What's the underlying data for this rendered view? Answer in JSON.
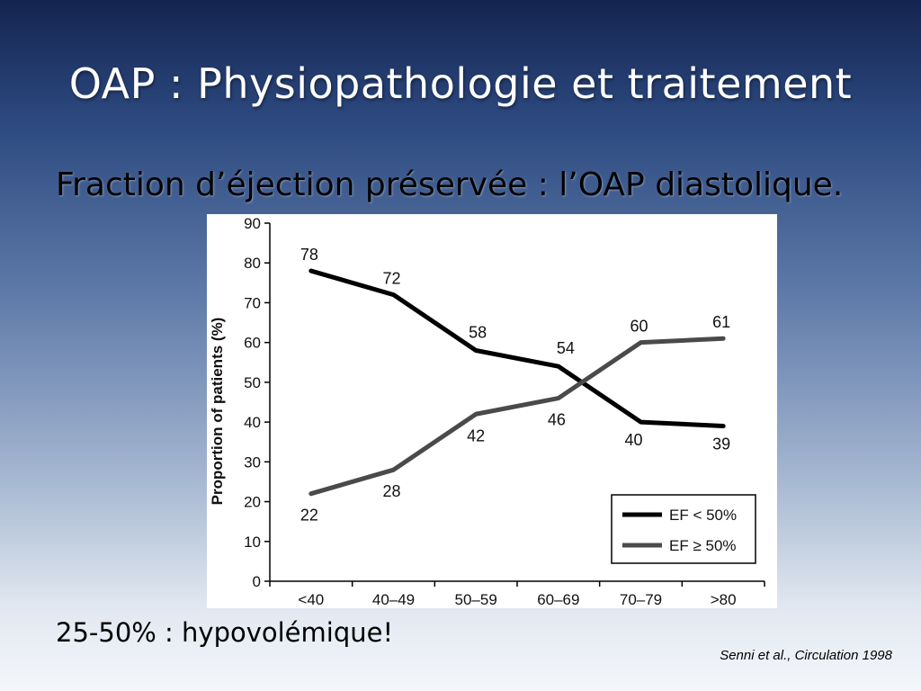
{
  "slide": {
    "title": "OAP : Physiopathologie et traitement",
    "subtitle": "Fraction d’éjection préservée : l’OAP diastolique.",
    "note": "25-50% : hypovolémique!",
    "citation": "Senni et al., Circulation 1998"
  },
  "chart_data": {
    "type": "line",
    "categories": [
      "<40",
      "40–49",
      "50–59",
      "60–69",
      "70–79",
      ">80"
    ],
    "ylabel": "Proportion of patients (%)",
    "xlabel": "",
    "ylim": [
      0,
      90
    ],
    "yticks": [
      0,
      10,
      20,
      30,
      40,
      50,
      60,
      70,
      80,
      90
    ],
    "grid": false,
    "legend_position": "bottom-right",
    "series": [
      {
        "name": "EF < 50%",
        "values": [
          78,
          72,
          58,
          54,
          40,
          39
        ],
        "color": "#000000",
        "labels": [
          "78",
          "72",
          "58",
          "54",
          "40",
          "39"
        ]
      },
      {
        "name": "EF ≥ 50%",
        "values": [
          22,
          28,
          42,
          46,
          60,
          61
        ],
        "color": "#4a4a4a",
        "labels": [
          "22",
          "28",
          "42",
          "46",
          "60",
          "61"
        ]
      }
    ]
  }
}
